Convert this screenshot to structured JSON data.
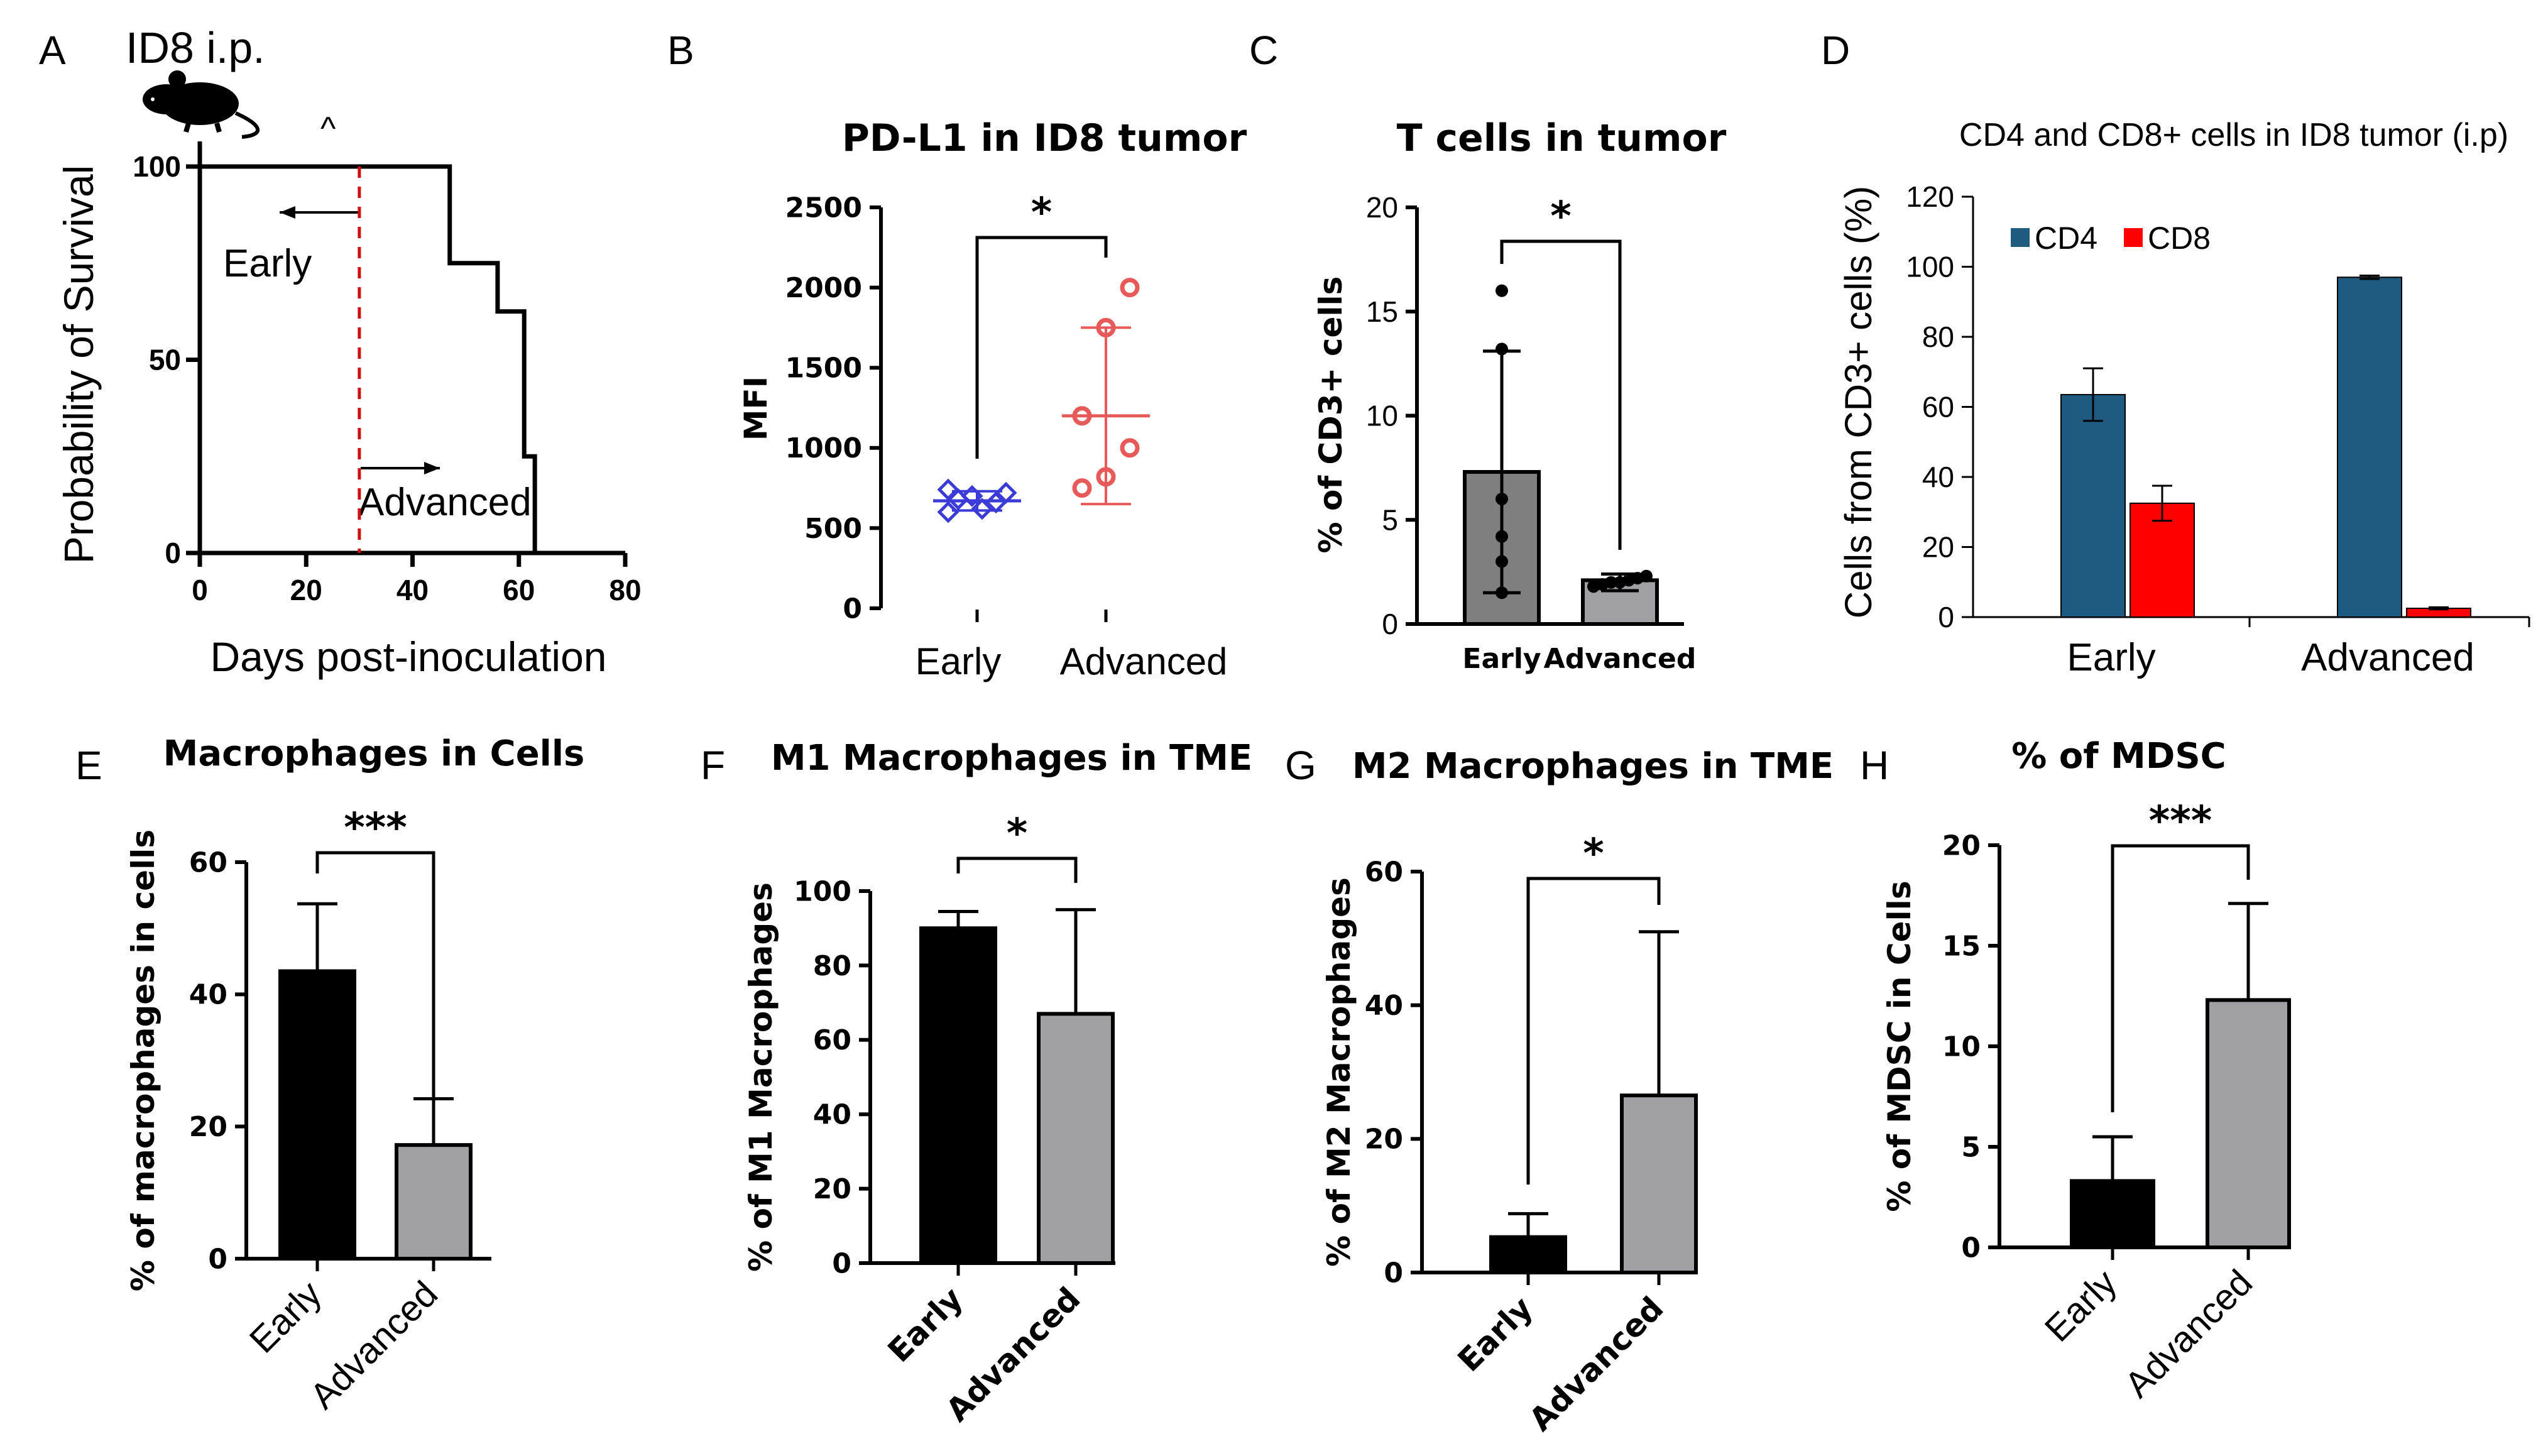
{
  "colors": {
    "black": "#000000",
    "early_gray": "#7f7f7f",
    "adv_gray": "#a0a0a4",
    "blue_points": "#3b3bd8",
    "red_points": "#e85a5a",
    "cd4": "#1f5a80",
    "cd8": "#ff0000",
    "red_dashed": "#d01010"
  },
  "panels": {
    "A": {
      "letter": "A",
      "mouse_label": "ID8 i.p.",
      "caret": "^",
      "early": "Early",
      "advanced": "Advanced"
    },
    "B": {
      "letter": "B"
    },
    "C": {
      "letter": "C"
    },
    "D": {
      "letter": "D"
    },
    "E": {
      "letter": "E"
    },
    "F": {
      "letter": "F"
    },
    "G": {
      "letter": "G"
    },
    "H": {
      "letter": "H"
    }
  },
  "chart_data": [
    {
      "id": "A",
      "type": "line",
      "title": "",
      "xlabel": "Days post-inoculation",
      "ylabel": "Probability of Survival",
      "xlim": [
        0,
        80
      ],
      "ylim": [
        0,
        100
      ],
      "xticks": [
        "0",
        "20",
        "40",
        "60",
        "80"
      ],
      "yticks": [
        "0",
        "50",
        "100"
      ],
      "series": [
        {
          "x": [
            0,
            47,
            47,
            56,
            56,
            61,
            61,
            63,
            63
          ],
          "y": [
            100,
            100,
            75,
            75,
            62.5,
            62.5,
            25,
            25,
            0
          ]
        }
      ],
      "vline_x": 30
    },
    {
      "id": "B",
      "type": "scatter",
      "title": "PD-L1 in ID8 tumor",
      "xlabel": "",
      "ylabel": "MFI",
      "ylim": [
        0,
        2500
      ],
      "yticks": [
        "0",
        "500",
        "1000",
        "1500",
        "2000",
        "2500"
      ],
      "categories": [
        "Early",
        "Advanced"
      ],
      "points": [
        [
          600,
          620,
          660,
          680,
          700,
          720,
          740
        ],
        [
          750,
          820,
          1000,
          1200,
          1750,
          2000
        ]
      ],
      "mean": [
        670,
        1200
      ],
      "sd_low": [
        610,
        650
      ],
      "sd_high": [
        730,
        1750
      ],
      "significance": "*"
    },
    {
      "id": "C",
      "type": "bar",
      "title": "T cells in tumor",
      "xlabel": "",
      "ylabel": "% of CD3+ cells",
      "ylim": [
        0,
        20
      ],
      "yticks": [
        "0",
        "5",
        "10",
        "15",
        "20"
      ],
      "categories": [
        "Early",
        "Advanced"
      ],
      "values": [
        7.3,
        2.1
      ],
      "err_low": [
        1.5,
        1.6
      ],
      "err_high": [
        13.1,
        2.4
      ],
      "points": [
        [
          1.5,
          3.0,
          4.2,
          6.0,
          13.2,
          16.0
        ],
        [
          1.8,
          1.9,
          2.0,
          2.0,
          2.1,
          2.2,
          2.3
        ]
      ],
      "significance": "*"
    },
    {
      "id": "D",
      "type": "bar",
      "title": "CD4 and CD8+ cells in ID8 tumor (i.p)",
      "xlabel": "",
      "ylabel": "Cells from CD3+ cells (%)",
      "ylim": [
        0,
        120
      ],
      "yticks": [
        "0",
        "20",
        "40",
        "60",
        "80",
        "100",
        "120"
      ],
      "categories": [
        "Early",
        "Advanced"
      ],
      "series": [
        {
          "name": "CD4",
          "values": [
            63.5,
            97
          ],
          "err": [
            7.5,
            0.5
          ]
        },
        {
          "name": "CD8",
          "values": [
            32.5,
            2.5
          ],
          "err": [
            5.0,
            0.3
          ]
        }
      ],
      "legend": "top-left"
    },
    {
      "id": "E",
      "type": "bar",
      "title": "Macrophages in Cells",
      "xlabel": "",
      "ylabel": "% of macrophages in cells",
      "ylim": [
        0,
        60
      ],
      "yticks": [
        "0",
        "20",
        "40",
        "60"
      ],
      "categories": [
        "Early",
        "Advanced"
      ],
      "values": [
        43.5,
        17.2
      ],
      "err": [
        10.2,
        7.0
      ],
      "significance": "***"
    },
    {
      "id": "F",
      "type": "bar",
      "title": "M1 Macrophages in TME",
      "xlabel": "",
      "ylabel": "% of M1 Macrophages",
      "ylim": [
        0,
        100
      ],
      "yticks": [
        "0",
        "20",
        "40",
        "60",
        "80",
        "100"
      ],
      "categories": [
        "Early",
        "Advanced"
      ],
      "values": [
        90,
        67
      ],
      "err": [
        4.5,
        28
      ],
      "significance": "*"
    },
    {
      "id": "G",
      "type": "bar",
      "title": "M2 Macrophages in TME",
      "xlabel": "",
      "ylabel": "% of M2 Macrophages",
      "ylim": [
        0,
        60
      ],
      "yticks": [
        "0",
        "20",
        "40",
        "60"
      ],
      "categories": [
        "Early",
        "Advanced"
      ],
      "values": [
        5.3,
        26.5
      ],
      "err": [
        3.5,
        24.5
      ],
      "significance": "*"
    },
    {
      "id": "H",
      "type": "bar",
      "title": "% of MDSC",
      "xlabel": "",
      "ylabel": "% of MDSC in Cells",
      "ylim": [
        0,
        20
      ],
      "yticks": [
        "0",
        "5",
        "10",
        "15",
        "20"
      ],
      "categories": [
        "Early",
        "Advanced"
      ],
      "values": [
        3.3,
        12.3
      ],
      "err": [
        2.2,
        4.8
      ],
      "significance": "***"
    }
  ]
}
